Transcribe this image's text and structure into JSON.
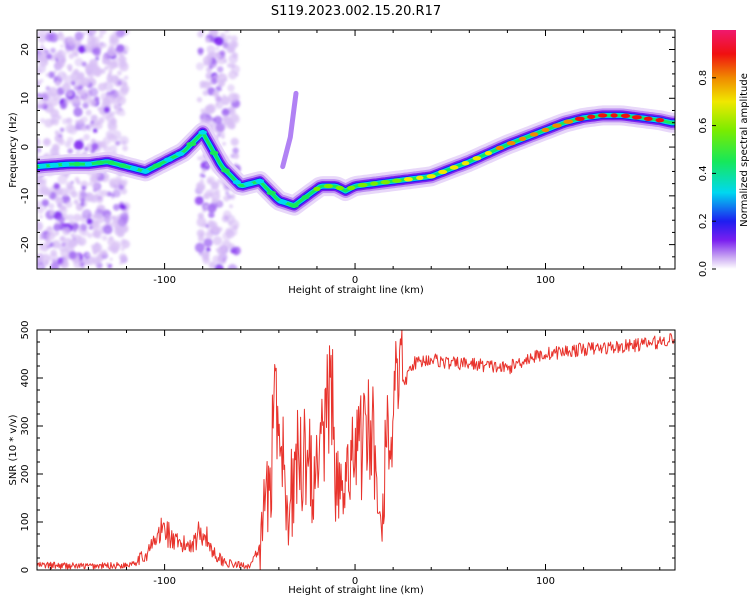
{
  "title": "S119.2023.002.15.20.R17",
  "colors": {
    "snr_line": "#e8332c",
    "colormap": [
      "#ffffff",
      "#c9a7f2",
      "#7a1ff0",
      "#1e1ef0",
      "#00d8f0",
      "#16e85a",
      "#7aec00",
      "#f0e800",
      "#f08a00",
      "#f01010",
      "#f0186e"
    ]
  },
  "chart_data": [
    {
      "type": "heatmap",
      "title": "",
      "xlabel": "Height of straight line (km)",
      "ylabel": "Frequency (Hz)",
      "xlim": [
        -167,
        168
      ],
      "ylim": [
        -25,
        24
      ],
      "xticks": [
        -100,
        0,
        100
      ],
      "yticks": [
        -20,
        -10,
        0,
        10,
        20
      ],
      "grid": false,
      "colorbar": {
        "label": "Normalized spectral amplitude",
        "range": [
          0,
          1
        ],
        "ticks": [
          "0.0",
          "0.2",
          "0.4",
          "0.6",
          "0.8"
        ]
      },
      "ridge": {
        "x": [
          -167,
          -150,
          -140,
          -130,
          -120,
          -110,
          -100,
          -90,
          -80,
          -70,
          -60,
          -50,
          -40,
          -32,
          -25,
          -18,
          -10,
          -5,
          0,
          10,
          20,
          40,
          60,
          80,
          100,
          110,
          120,
          130,
          140,
          150,
          160,
          166
        ],
        "y": [
          -4,
          -3.5,
          -3.5,
          -3,
          -4,
          -5,
          -3,
          -1,
          3,
          -4,
          -8,
          -7,
          -11,
          -12,
          -10,
          -8,
          -8,
          -9,
          -8,
          -7.5,
          -7,
          -6,
          -3,
          0.5,
          3.5,
          5,
          6,
          6.5,
          6.5,
          6,
          5.5,
          5
        ]
      },
      "noise_bands": [
        [
          -167,
          -120
        ],
        [
          -82,
          -62
        ]
      ]
    },
    {
      "type": "line",
      "title": "",
      "xlabel": "Height of straight line (km)",
      "ylabel": "SNR (10 * v/v)",
      "xlim": [
        -167,
        168
      ],
      "ylim": [
        0,
        500
      ],
      "xticks": [
        -100,
        0,
        100
      ],
      "yticks": [
        0,
        100,
        200,
        300,
        400,
        500
      ],
      "grid": false,
      "series": [
        {
          "x": [
            -167,
            -140,
            -120,
            -110,
            -105,
            -100,
            -95,
            -90,
            -85,
            -80,
            -75,
            -70,
            -65,
            -60,
            -55,
            -50,
            -47,
            -45,
            -42,
            -40,
            -35,
            -30,
            -25,
            -20,
            -15,
            -12,
            -10,
            -5,
            0,
            5,
            8,
            10,
            12,
            14,
            16,
            20,
            25,
            30,
            40,
            50,
            60,
            80,
            90,
            100,
            120,
            140,
            160,
            168
          ],
          "y": [
            10,
            8,
            10,
            30,
            60,
            90,
            55,
            50,
            60,
            85,
            40,
            20,
            12,
            10,
            10,
            40,
            180,
            160,
            350,
            200,
            120,
            250,
            220,
            180,
            320,
            430,
            180,
            150,
            230,
            280,
            300,
            270,
            180,
            120,
            240,
            320,
            380,
            430,
            440,
            430,
            430,
            420,
            440,
            450,
            460,
            465,
            475,
            485
          ]
        }
      ]
    }
  ]
}
